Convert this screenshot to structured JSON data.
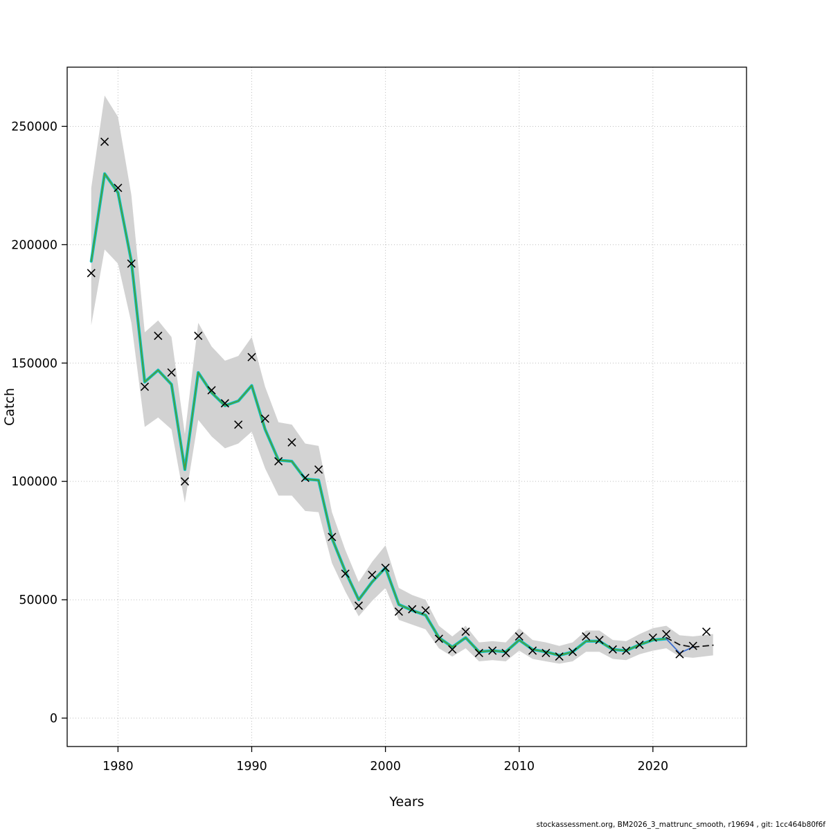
{
  "page": {
    "footer": "stockassessment.org, BM2026_3_mattrunc_smooth, r19694 , git: 1cc464b80f6f"
  },
  "chart_data": {
    "type": "line",
    "title": "",
    "xlabel": "Years",
    "ylabel": "Catch",
    "xlim": [
      1976.2,
      2027.0
    ],
    "ylim": [
      -12000,
      275000
    ],
    "x_ticks": [
      1980,
      1990,
      2000,
      2010,
      2020
    ],
    "y_ticks": [
      0,
      50000,
      100000,
      150000,
      200000,
      250000
    ],
    "grid": true,
    "legend_position": "none",
    "colors": {
      "band": "#d2d2d2",
      "fit_outer": "#00c5cd",
      "fit_inner": "#4f9e3c",
      "recent": "#3d6fd1",
      "forecast": "#111111",
      "marker": "#000000",
      "grid": "#bdbdbd",
      "axis": "#000000"
    },
    "observed": {
      "marker": "x",
      "x": [
        1978,
        1979,
        1980,
        1981,
        1982,
        1983,
        1984,
        1985,
        1986,
        1987,
        1988,
        1989,
        1990,
        1991,
        1992,
        1993,
        1994,
        1995,
        1996,
        1997,
        1998,
        1999,
        2000,
        2001,
        2002,
        2003,
        2004,
        2005,
        2006,
        2007,
        2008,
        2009,
        2010,
        2011,
        2012,
        2013,
        2014,
        2015,
        2016,
        2017,
        2018,
        2019,
        2020,
        2021,
        2022,
        2023,
        2024
      ],
      "values": [
        188000,
        243500,
        224000,
        192000,
        140000,
        161500,
        146000,
        100000,
        161500,
        138500,
        133000,
        124000,
        152500,
        126500,
        108500,
        116500,
        101500,
        105000,
        76500,
        61000,
        47500,
        60500,
        63500,
        45000,
        46000,
        45500,
        33500,
        29000,
        36500,
        27500,
        28500,
        27500,
        34500,
        28500,
        27500,
        26000,
        28000,
        34500,
        33000,
        29000,
        28500,
        31000,
        34000,
        35500,
        27000,
        30500,
        36500
      ]
    },
    "fit": {
      "name": "estimated-catch",
      "x": [
        1978,
        1979,
        1980,
        1981,
        1982,
        1983,
        1984,
        1985,
        1986,
        1987,
        1988,
        1989,
        1990,
        1991,
        1992,
        1993,
        1994,
        1995,
        1996,
        1997,
        1998,
        1999,
        2000,
        2001,
        2002,
        2003,
        2004,
        2005,
        2006,
        2007,
        2008,
        2009,
        2010,
        2011,
        2012,
        2013,
        2014,
        2015,
        2016,
        2017,
        2018,
        2019,
        2020,
        2021
      ],
      "values": [
        193000,
        230000,
        222000,
        193000,
        142000,
        147000,
        141000,
        105000,
        146000,
        137500,
        132000,
        134000,
        140500,
        122000,
        109000,
        108500,
        101000,
        100500,
        76000,
        62000,
        50000,
        57500,
        63500,
        48000,
        45500,
        43500,
        34000,
        30000,
        34000,
        28000,
        28500,
        28000,
        33000,
        29000,
        28000,
        26500,
        28000,
        32500,
        32500,
        29000,
        28500,
        31000,
        33000,
        33500
      ]
    },
    "recent": {
      "name": "recent-estimate",
      "x": [
        2021,
        2022,
        2023
      ],
      "values": [
        33500,
        27500,
        30000
      ]
    },
    "forecast": {
      "name": "forecast",
      "style": "dashed",
      "x": [
        2021,
        2022,
        2023,
        2024.5
      ],
      "values": [
        34000,
        31000,
        30000,
        30800
      ]
    },
    "band": {
      "name": "confidence-band",
      "x": [
        1978,
        1979,
        1980,
        1981,
        1982,
        1983,
        1984,
        1985,
        1986,
        1987,
        1988,
        1989,
        1990,
        1991,
        1992,
        1993,
        1994,
        1995,
        1996,
        1997,
        1998,
        1999,
        2000,
        2001,
        2002,
        2003,
        2004,
        2005,
        2006,
        2007,
        2008,
        2009,
        2010,
        2011,
        2012,
        2013,
        2014,
        2015,
        2016,
        2017,
        2018,
        2019,
        2020,
        2021,
        2022,
        2023,
        2024.5
      ],
      "upper": [
        224000,
        263000,
        254000,
        221000,
        163000,
        168000,
        161000,
        120000,
        167000,
        157000,
        151000,
        153000,
        161000,
        140000,
        125000,
        124000,
        116000,
        115000,
        87000,
        71000,
        57500,
        66000,
        73000,
        55000,
        52000,
        50000,
        39000,
        34500,
        39000,
        32000,
        32500,
        32000,
        38000,
        33000,
        32000,
        30500,
        32000,
        37000,
        37000,
        33000,
        32500,
        35500,
        38000,
        39000,
        35000,
        34500,
        35500
      ],
      "lower": [
        166000,
        198000,
        192000,
        167000,
        123000,
        127000,
        122000,
        91000,
        126000,
        119000,
        114000,
        116000,
        121000,
        105500,
        94000,
        94000,
        87500,
        87000,
        65500,
        53500,
        43000,
        49500,
        55000,
        41500,
        39500,
        37500,
        29500,
        26000,
        29500,
        24000,
        24500,
        24000,
        28500,
        25000,
        24000,
        23000,
        24000,
        28000,
        28000,
        25000,
        24500,
        27000,
        28500,
        29500,
        26000,
        25500,
        26500
      ]
    }
  }
}
